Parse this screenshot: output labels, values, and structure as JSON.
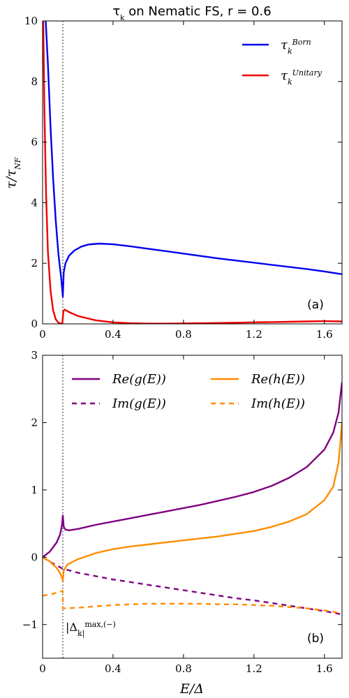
{
  "chart_data": [
    {
      "type": "line",
      "title": "τ_k on Nematic FS, r = 0.6",
      "xlabel": "",
      "ylabel": "τ/τ_NF",
      "xlim": [
        0,
        1.7
      ],
      "ylim": [
        0,
        10
      ],
      "xticks": [
        "0",
        "0.4",
        "0.8",
        "1.2",
        "1.6"
      ],
      "yticks": [
        "0",
        "2",
        "4",
        "6",
        "8",
        "10"
      ],
      "vline_x": 0.115,
      "panel_label": "(a)",
      "legend_placement": "top-right",
      "grid": false,
      "series": [
        {
          "name": "τ_k^Born",
          "color": "#0000ee",
          "style": "solid",
          "points": [
            [
              0.018,
              10
            ],
            [
              0.03,
              8.6
            ],
            [
              0.045,
              6.5
            ],
            [
              0.06,
              4.8
            ],
            [
              0.075,
              3.4
            ],
            [
              0.09,
              2.3
            ],
            [
              0.105,
              1.55
            ],
            [
              0.112,
              1.1
            ],
            [
              0.115,
              0.9
            ],
            [
              0.12,
              1.7
            ],
            [
              0.13,
              2.0
            ],
            [
              0.15,
              2.25
            ],
            [
              0.18,
              2.42
            ],
            [
              0.22,
              2.55
            ],
            [
              0.26,
              2.62
            ],
            [
              0.32,
              2.65
            ],
            [
              0.4,
              2.63
            ],
            [
              0.5,
              2.56
            ],
            [
              0.6,
              2.48
            ],
            [
              0.7,
              2.4
            ],
            [
              0.8,
              2.32
            ],
            [
              0.9,
              2.24
            ],
            [
              1.0,
              2.16
            ],
            [
              1.1,
              2.09
            ],
            [
              1.2,
              2.02
            ],
            [
              1.3,
              1.95
            ],
            [
              1.4,
              1.88
            ],
            [
              1.5,
              1.81
            ],
            [
              1.6,
              1.73
            ],
            [
              1.7,
              1.64
            ]
          ]
        },
        {
          "name": "τ_k^Unitary",
          "color": "#ee0000",
          "style": "solid",
          "points": [
            [
              0.004,
              10
            ],
            [
              0.01,
              7.2
            ],
            [
              0.02,
              4.3
            ],
            [
              0.03,
              2.4
            ],
            [
              0.045,
              1.1
            ],
            [
              0.06,
              0.45
            ],
            [
              0.075,
              0.15
            ],
            [
              0.09,
              0.04
            ],
            [
              0.105,
              0.01
            ],
            [
              0.112,
              0.0
            ],
            [
              0.115,
              0.2
            ],
            [
              0.118,
              0.42
            ],
            [
              0.125,
              0.47
            ],
            [
              0.15,
              0.39
            ],
            [
              0.2,
              0.26
            ],
            [
              0.3,
              0.12
            ],
            [
              0.4,
              0.05
            ],
            [
              0.5,
              0.02
            ],
            [
              0.6,
              0.01
            ],
            [
              0.7,
              0.01
            ],
            [
              0.8,
              0.015
            ],
            [
              0.9,
              0.02
            ],
            [
              1.0,
              0.03
            ],
            [
              1.1,
              0.04
            ],
            [
              1.2,
              0.05
            ],
            [
              1.3,
              0.06
            ],
            [
              1.4,
              0.07
            ],
            [
              1.5,
              0.08
            ],
            [
              1.6,
              0.09
            ],
            [
              1.7,
              0.08
            ]
          ]
        }
      ]
    },
    {
      "type": "line",
      "title": "",
      "xlabel": "E/Δ",
      "ylabel": "",
      "xlim": [
        0,
        1.7
      ],
      "ylim": [
        -1.5,
        3
      ],
      "xticks": [
        "0",
        "0.4",
        "0.8",
        "1.2",
        "1.6"
      ],
      "yticks": [
        "−1",
        "0",
        "1",
        "2",
        "3"
      ],
      "vline_x": 0.115,
      "vline_label": "|Δ_k|^{max,(−)}",
      "panel_label": "(b)",
      "legend_placement": "top",
      "grid": false,
      "series": [
        {
          "name": "Re(g(E))",
          "color": "#800080",
          "style": "solid",
          "points": [
            [
              0,
              0
            ],
            [
              0.04,
              0.08
            ],
            [
              0.08,
              0.22
            ],
            [
              0.1,
              0.34
            ],
            [
              0.11,
              0.48
            ],
            [
              0.115,
              0.62
            ],
            [
              0.12,
              0.45
            ],
            [
              0.13,
              0.41
            ],
            [
              0.15,
              0.4
            ],
            [
              0.2,
              0.42
            ],
            [
              0.3,
              0.48
            ],
            [
              0.4,
              0.53
            ],
            [
              0.5,
              0.58
            ],
            [
              0.6,
              0.63
            ],
            [
              0.7,
              0.68
            ],
            [
              0.8,
              0.73
            ],
            [
              0.9,
              0.78
            ],
            [
              1.0,
              0.84
            ],
            [
              1.1,
              0.9
            ],
            [
              1.2,
              0.97
            ],
            [
              1.3,
              1.06
            ],
            [
              1.4,
              1.18
            ],
            [
              1.5,
              1.34
            ],
            [
              1.6,
              1.6
            ],
            [
              1.65,
              1.85
            ],
            [
              1.68,
              2.15
            ],
            [
              1.7,
              2.6
            ]
          ]
        },
        {
          "name": "Im(g(E))",
          "color": "#800080",
          "style": "dashed",
          "points": [
            [
              0,
              0
            ],
            [
              0.05,
              -0.08
            ],
            [
              0.1,
              -0.15
            ],
            [
              0.115,
              -0.17
            ],
            [
              0.2,
              -0.23
            ],
            [
              0.3,
              -0.28
            ],
            [
              0.4,
              -0.33
            ],
            [
              0.5,
              -0.37
            ],
            [
              0.6,
              -0.41
            ],
            [
              0.7,
              -0.45
            ],
            [
              0.8,
              -0.49
            ],
            [
              0.9,
              -0.53
            ],
            [
              1.0,
              -0.57
            ],
            [
              1.1,
              -0.61
            ],
            [
              1.2,
              -0.64
            ],
            [
              1.3,
              -0.68
            ],
            [
              1.4,
              -0.72
            ],
            [
              1.5,
              -0.76
            ],
            [
              1.6,
              -0.8
            ],
            [
              1.7,
              -0.85
            ]
          ]
        },
        {
          "name": "Re(h(E))",
          "color": "#ff8c00",
          "style": "solid",
          "points": [
            [
              0,
              0
            ],
            [
              0.04,
              -0.06
            ],
            [
              0.08,
              -0.16
            ],
            [
              0.1,
              -0.24
            ],
            [
              0.11,
              -0.3
            ],
            [
              0.115,
              -0.35
            ],
            [
              0.12,
              -0.2
            ],
            [
              0.14,
              -0.11
            ],
            [
              0.2,
              -0.03
            ],
            [
              0.3,
              0.06
            ],
            [
              0.4,
              0.12
            ],
            [
              0.5,
              0.16
            ],
            [
              0.6,
              0.19
            ],
            [
              0.7,
              0.22
            ],
            [
              0.8,
              0.25
            ],
            [
              0.9,
              0.28
            ],
            [
              1.0,
              0.31
            ],
            [
              1.1,
              0.35
            ],
            [
              1.2,
              0.39
            ],
            [
              1.3,
              0.45
            ],
            [
              1.4,
              0.53
            ],
            [
              1.5,
              0.64
            ],
            [
              1.6,
              0.85
            ],
            [
              1.65,
              1.05
            ],
            [
              1.68,
              1.4
            ],
            [
              1.7,
              2.0
            ]
          ]
        },
        {
          "name": "Im(h(E))",
          "color": "#ff8c00",
          "style": "dashed",
          "points": [
            [
              0,
              -0.57
            ],
            [
              0.05,
              -0.55
            ],
            [
              0.1,
              -0.51
            ],
            [
              0.115,
              -0.5
            ],
            [
              0.115,
              -0.76
            ],
            [
              0.2,
              -0.75
            ],
            [
              0.3,
              -0.73
            ],
            [
              0.4,
              -0.71
            ],
            [
              0.5,
              -0.7
            ],
            [
              0.6,
              -0.69
            ],
            [
              0.7,
              -0.69
            ],
            [
              0.8,
              -0.69
            ],
            [
              0.9,
              -0.69
            ],
            [
              1.0,
              -0.7
            ],
            [
              1.1,
              -0.7
            ],
            [
              1.2,
              -0.71
            ],
            [
              1.3,
              -0.72
            ],
            [
              1.4,
              -0.74
            ],
            [
              1.5,
              -0.76
            ],
            [
              1.6,
              -0.79
            ],
            [
              1.7,
              -0.83
            ]
          ]
        }
      ]
    }
  ]
}
